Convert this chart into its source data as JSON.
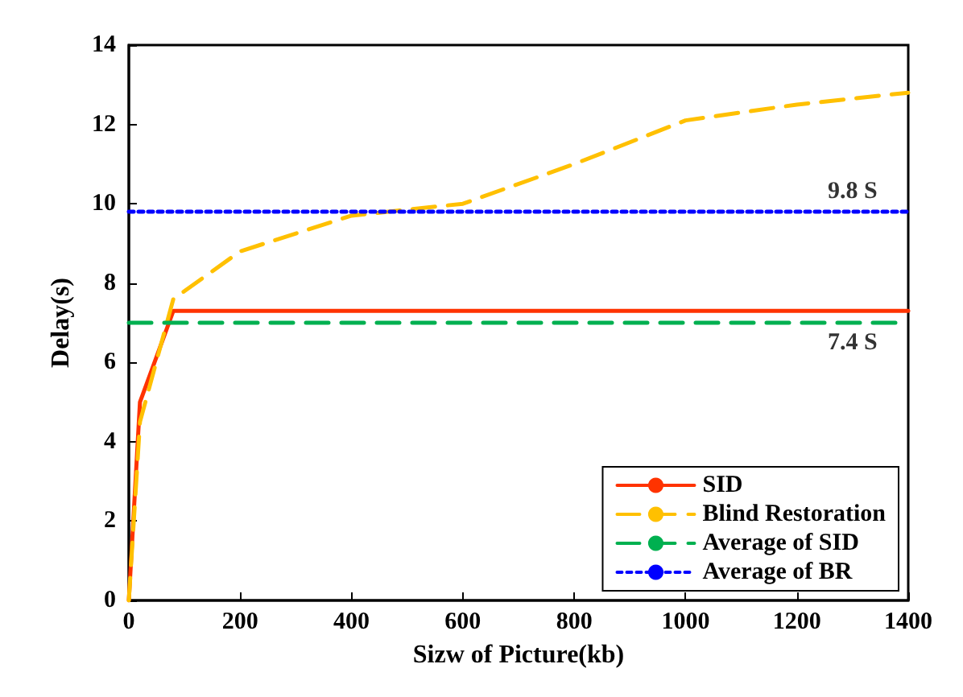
{
  "chart_data": {
    "type": "line",
    "xlabel": "Sizw of Picture(kb)",
    "ylabel": "Delay(s)",
    "xlim": [
      0,
      1400
    ],
    "ylim": [
      0,
      14
    ],
    "xticks": [
      0,
      200,
      400,
      600,
      800,
      1000,
      1200,
      1400
    ],
    "yticks": [
      0,
      2,
      4,
      6,
      8,
      10,
      12,
      14
    ],
    "grid": false,
    "legend": "bottom right",
    "marker": "none",
    "series": [
      {
        "name": "SID",
        "color": "#ff3300",
        "line_style": "solid",
        "x": [
          0,
          20,
          80,
          1400
        ],
        "values": [
          0,
          5,
          7.3,
          7.3
        ]
      },
      {
        "name": "Blind Restoration",
        "color": "#ffc000",
        "line_style": "dashed",
        "x": [
          0,
          20,
          80,
          200,
          400,
          600,
          800,
          1000,
          1200,
          1400
        ],
        "values": [
          0,
          4.5,
          7.6,
          8.8,
          9.7,
          10,
          11,
          12.1,
          12.5,
          12.8
        ]
      },
      {
        "name": "Average of SID",
        "color": "#00b050",
        "line_style": "dashed",
        "x": [
          0,
          1400
        ],
        "values": [
          7,
          7
        ]
      },
      {
        "name": "Average of BR",
        "color": "#0000ff",
        "line_style": "dotted",
        "x": [
          0,
          1400
        ],
        "values": [
          9.8,
          9.8
        ]
      }
    ],
    "annotations": [
      {
        "text": "9.8 S",
        "x": 1300,
        "y": 9.8
      },
      {
        "text": "7.4 S",
        "x": 1300,
        "y": 7
      }
    ]
  }
}
